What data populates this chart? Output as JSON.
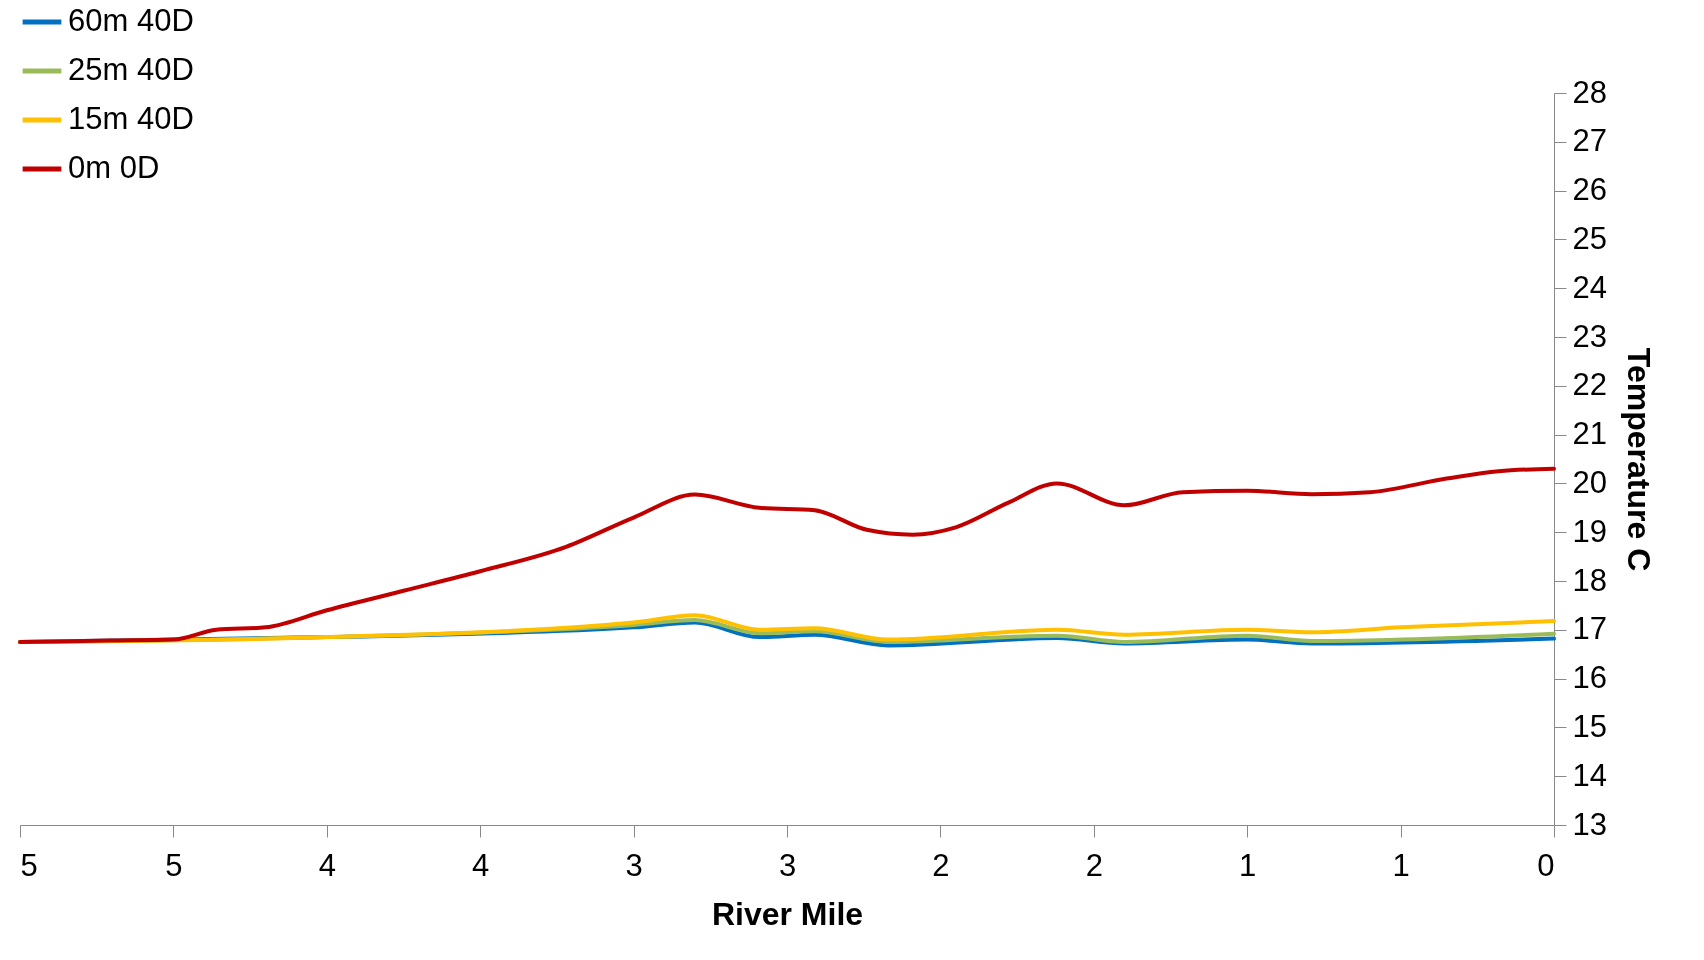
{
  "chart_data": {
    "type": "line",
    "xlabel": "River Mile",
    "ylabel": "Temperature C",
    "xlim": [
      5,
      0
    ],
    "ylim": [
      13,
      28
    ],
    "xticks": [
      5,
      {
        "value": 4.5,
        "label": "5"
      },
      4,
      {
        "value": 3.5,
        "label": "4"
      },
      3,
      {
        "value": 2.5,
        "label": "3"
      },
      2,
      {
        "value": 1.5,
        "label": "2"
      },
      1,
      {
        "value": 0.5,
        "label": "1"
      },
      0
    ],
    "yticks": [
      13,
      14,
      15,
      16,
      17,
      18,
      19,
      20,
      21,
      22,
      23,
      24,
      25,
      26,
      27,
      28
    ],
    "legend": "top left",
    "line_style": "solid",
    "series": [
      {
        "name": "60m 40D",
        "color": "#0070c0",
        "x": [
          5,
          4,
          3,
          2.8,
          2.59,
          2.41,
          2.17,
          1.62,
          1.4,
          1,
          0.79,
          0
        ],
        "values": [
          16.75,
          16.85,
          17.05,
          17.15,
          16.85,
          16.9,
          16.68,
          16.83,
          16.72,
          16.8,
          16.72,
          16.82
        ]
      },
      {
        "name": "25m 40D",
        "color": "#9bbb59",
        "x": [
          5,
          4,
          3,
          2.8,
          2.59,
          2.41,
          2.17,
          1.62,
          1.4,
          1,
          0.79,
          0
        ],
        "values": [
          16.75,
          16.85,
          17.1,
          17.2,
          16.93,
          16.97,
          16.75,
          16.88,
          16.75,
          16.88,
          16.77,
          16.92
        ]
      },
      {
        "name": "15m 40D",
        "color": "#ffc000",
        "x": [
          5,
          4,
          3,
          2.8,
          2.59,
          2.41,
          2.17,
          1.62,
          1.4,
          1,
          0.79,
          0.5,
          0
        ],
        "values": [
          16.75,
          16.85,
          17.15,
          17.3,
          17.0,
          17.03,
          16.8,
          17.0,
          16.9,
          17.0,
          16.95,
          17.05,
          17.18
        ]
      },
      {
        "name": "0m 0D",
        "color": "#c00000",
        "x": [
          5,
          4.71,
          4.5,
          4.36,
          4.2,
          4,
          3.75,
          3.5,
          3.22,
          3,
          2.8,
          2.59,
          2.41,
          2.24,
          2.09,
          1.95,
          1.78,
          1.62,
          1.4,
          1.21,
          1,
          0.79,
          0.6,
          0.35,
          0.18,
          0
        ],
        "values": [
          16.75,
          16.78,
          16.8,
          17.0,
          17.05,
          17.4,
          17.8,
          18.2,
          18.7,
          19.3,
          19.77,
          19.5,
          19.45,
          19.05,
          18.95,
          19.1,
          19.6,
          20.0,
          19.55,
          19.82,
          19.85,
          19.78,
          19.82,
          20.1,
          20.25,
          20.3
        ]
      }
    ]
  }
}
